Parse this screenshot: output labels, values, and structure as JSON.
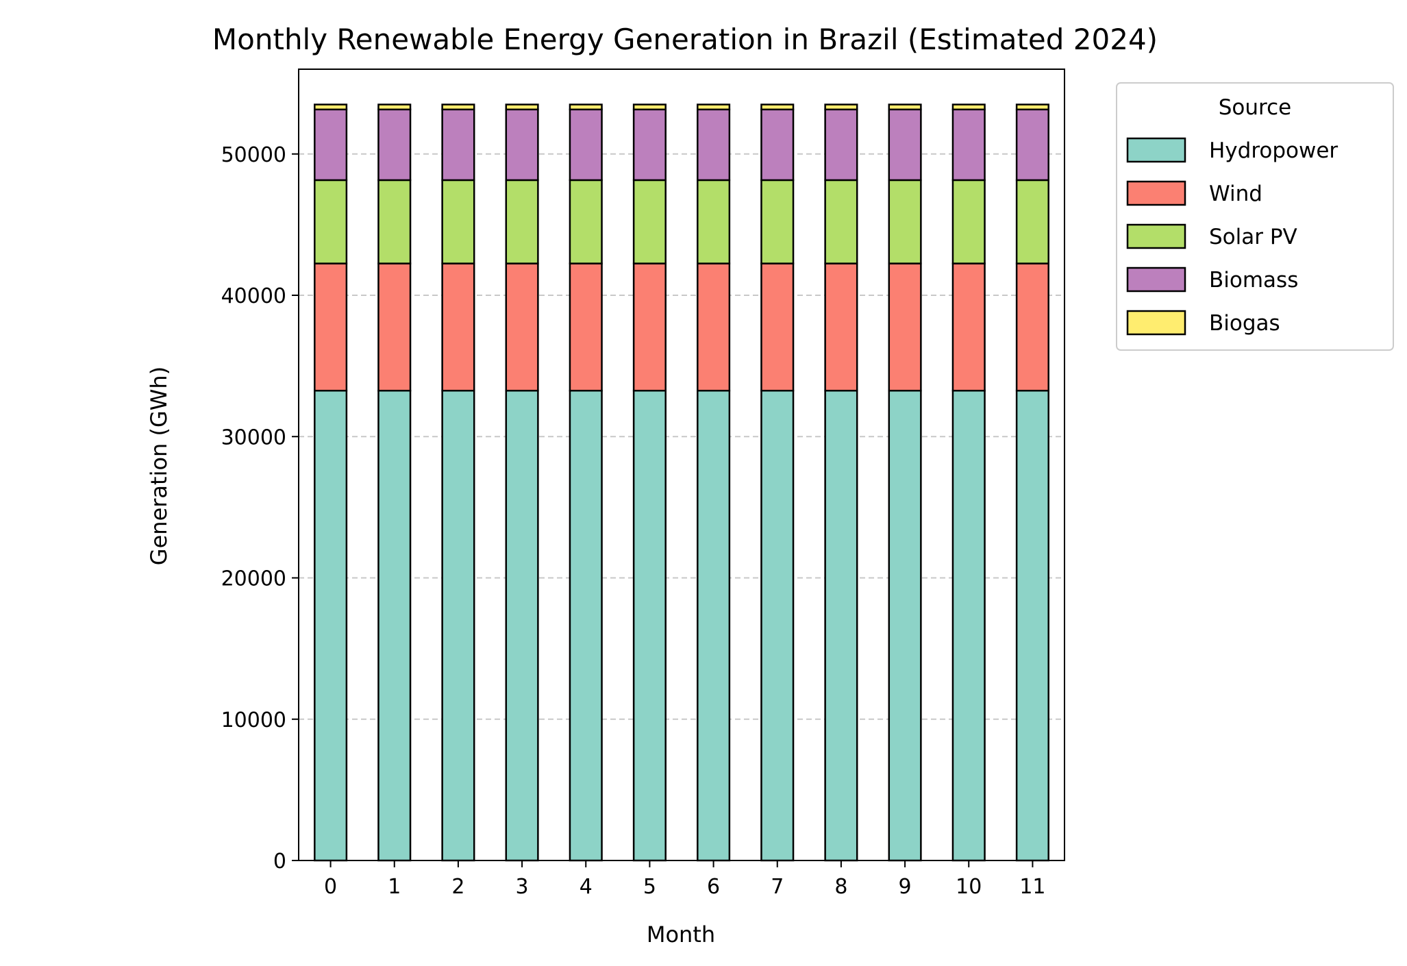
{
  "chart_data": {
    "type": "bar",
    "stacked": true,
    "title": "Monthly Renewable Energy Generation in Brazil (Estimated 2024)",
    "xlabel": "Month",
    "ylabel": "Generation (GWh)",
    "categories": [
      "0",
      "1",
      "2",
      "3",
      "4",
      "5",
      "6",
      "7",
      "8",
      "9",
      "10",
      "11"
    ],
    "ylim": [
      0,
      56000
    ],
    "yticks": [
      0,
      10000,
      20000,
      30000,
      40000,
      50000
    ],
    "ytick_labels": [
      "0",
      "10000",
      "20000",
      "30000",
      "40000",
      "50000"
    ],
    "grid": "y-dashed",
    "legend_title": "Source",
    "legend_placement": "outside-right-top",
    "series": [
      {
        "name": "Hydropower",
        "color": "#8dd3c7",
        "values": [
          33250,
          33250,
          33250,
          33250,
          33250,
          33250,
          33250,
          33250,
          33250,
          33250,
          33250,
          33250
        ]
      },
      {
        "name": "Wind",
        "color": "#fb8072",
        "values": [
          9000,
          9000,
          9000,
          9000,
          9000,
          9000,
          9000,
          9000,
          9000,
          9000,
          9000,
          9000
        ]
      },
      {
        "name": "Solar PV",
        "color": "#b3de69",
        "values": [
          5900,
          5900,
          5900,
          5900,
          5900,
          5900,
          5900,
          5900,
          5900,
          5900,
          5900,
          5900
        ]
      },
      {
        "name": "Biomass",
        "color": "#bc80bd",
        "values": [
          5000,
          5000,
          5000,
          5000,
          5000,
          5000,
          5000,
          5000,
          5000,
          5000,
          5000,
          5000
        ]
      },
      {
        "name": "Biogas",
        "color": "#ffed6f",
        "values": [
          350,
          350,
          350,
          350,
          350,
          350,
          350,
          350,
          350,
          350,
          350,
          350
        ]
      }
    ]
  }
}
